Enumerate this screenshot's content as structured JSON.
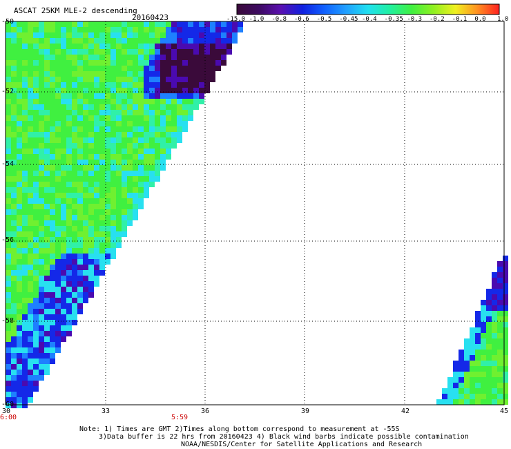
{
  "header": {
    "title": "ASCAT 25KM MLE-2 descending",
    "date": "20160423"
  },
  "colorbar": {
    "tick_labels": [
      "-15.0",
      "-1.0",
      "-0.8",
      "-0.6",
      "-0.5",
      "-0.45",
      "-0.4",
      "-0.35",
      "-0.3",
      "-0.2",
      "-0.1",
      "0.0",
      "1.0"
    ],
    "colors": [
      "#3a0a3a",
      "#3c0a60",
      "#5a10b0",
      "#1020e0",
      "#1060ff",
      "#20a0ff",
      "#20e0f0",
      "#20f0a0",
      "#40f040",
      "#90f020",
      "#f0f020",
      "#ff9020",
      "#ff2020"
    ]
  },
  "map": {
    "lat_labels": [
      "-50",
      "-52",
      "-54",
      "-56",
      "-58",
      "-60"
    ],
    "lon_labels": [
      "30",
      "33",
      "36",
      "39",
      "42",
      "45"
    ],
    "time_labels": [
      "6:00",
      "5:59"
    ],
    "swaths": [
      {
        "name": "west-swath",
        "note": "field of MLE values west of 37E"
      },
      {
        "name": "east-swath",
        "note": "field of MLE values east of 43E"
      }
    ]
  },
  "footer": {
    "line1": "Note: 1) Times are GMT 2)Times along bottom correspond to measurement at -55S",
    "line2": "3)Data buffer is 22 hrs from 20160423 4) Black wind barbs indicate possible contamination",
    "line3": "NOAA/NESDIS/Center for Satellite Applications and Research"
  }
}
